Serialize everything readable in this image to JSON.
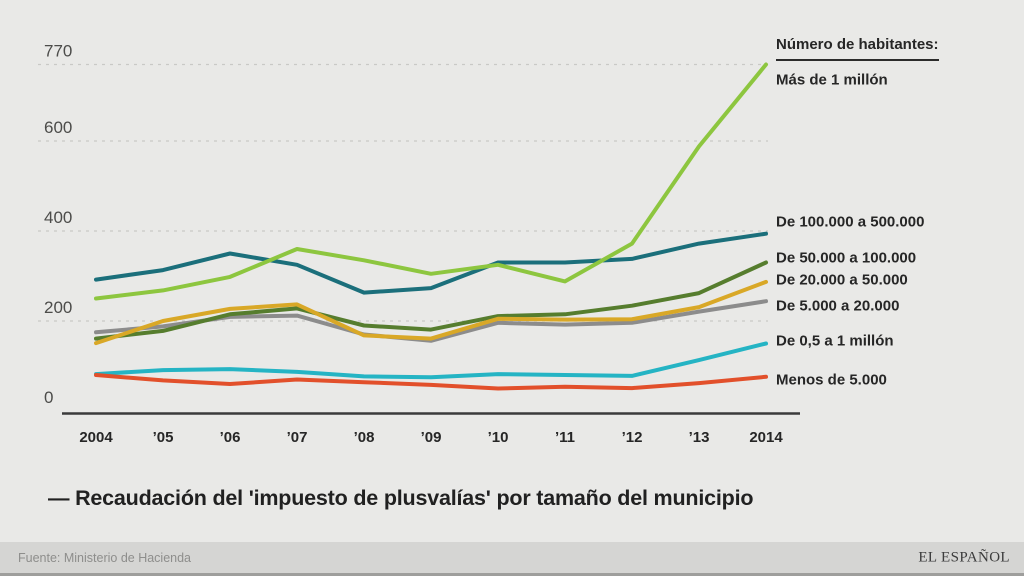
{
  "chart_data": {
    "type": "line",
    "title": "Recaudación del 'impuesto de plusvalías' por tamaño del municipio",
    "x_labels": [
      "2004",
      "’05",
      "’06",
      "’07",
      "’08",
      "’09",
      "’10",
      "’11",
      "’12",
      "’13",
      "2014"
    ],
    "x_values": [
      2004,
      2005,
      2006,
      2007,
      2008,
      2009,
      2010,
      2011,
      2012,
      2013,
      2014
    ],
    "y_ticks": [
      0,
      200,
      400,
      600,
      770
    ],
    "ylim": [
      0,
      770
    ],
    "grid": "dashed-horizontal",
    "legend_position": "right",
    "legend_title": "Número de habitantes:",
    "series": [
      {
        "name": "Más de 1 millón",
        "color": "#8dc63f",
        "values": [
          250,
          268,
          298,
          360,
          335,
          305,
          325,
          288,
          372,
          588,
          770
        ]
      },
      {
        "name": "De 100.000 a 500.000",
        "color": "#1b6f7b",
        "values": [
          292,
          313,
          350,
          325,
          263,
          273,
          330,
          330,
          338,
          372,
          394
        ]
      },
      {
        "name": "De 50.000 a 100.000",
        "color": "#567d2e",
        "values": [
          161,
          178,
          215,
          228,
          190,
          181,
          211,
          215,
          234,
          262,
          330
        ]
      },
      {
        "name": "De 20.000 a 50.000",
        "color": "#d9a827",
        "values": [
          151,
          200,
          227,
          237,
          168,
          161,
          205,
          203,
          204,
          231,
          287
        ]
      },
      {
        "name": "De 5.000 a 20.000",
        "color": "#8c8c8c",
        "values": [
          175,
          188,
          209,
          212,
          170,
          156,
          196,
          192,
          196,
          221,
          244
        ]
      },
      {
        "name": "De 0,5 a 1 millón",
        "color": "#25b4c4",
        "values": [
          82,
          91,
          93,
          87,
          77,
          75,
          82,
          80,
          78,
          113,
          150
        ]
      },
      {
        "name": "Menos de 5.000",
        "color": "#e2502b",
        "values": [
          80,
          68,
          60,
          70,
          64,
          58,
          50,
          54,
          51,
          62,
          76
        ]
      }
    ]
  },
  "caption": "— Recaudación del 'impuesto de plusvalías' por tamaño del municipio",
  "footer": {
    "source": "Fuente: Ministerio de Hacienda",
    "brand": "EL ESPAÑOL"
  },
  "colors": {
    "background": "#e9e9e7",
    "footer_bg": "#d5d5d3",
    "grid": "#c9c9c6",
    "axis": "#3b3b3b",
    "tick_text": "#4c4c4a",
    "xlabel_text": "#262626",
    "legend_text": "#262626"
  }
}
